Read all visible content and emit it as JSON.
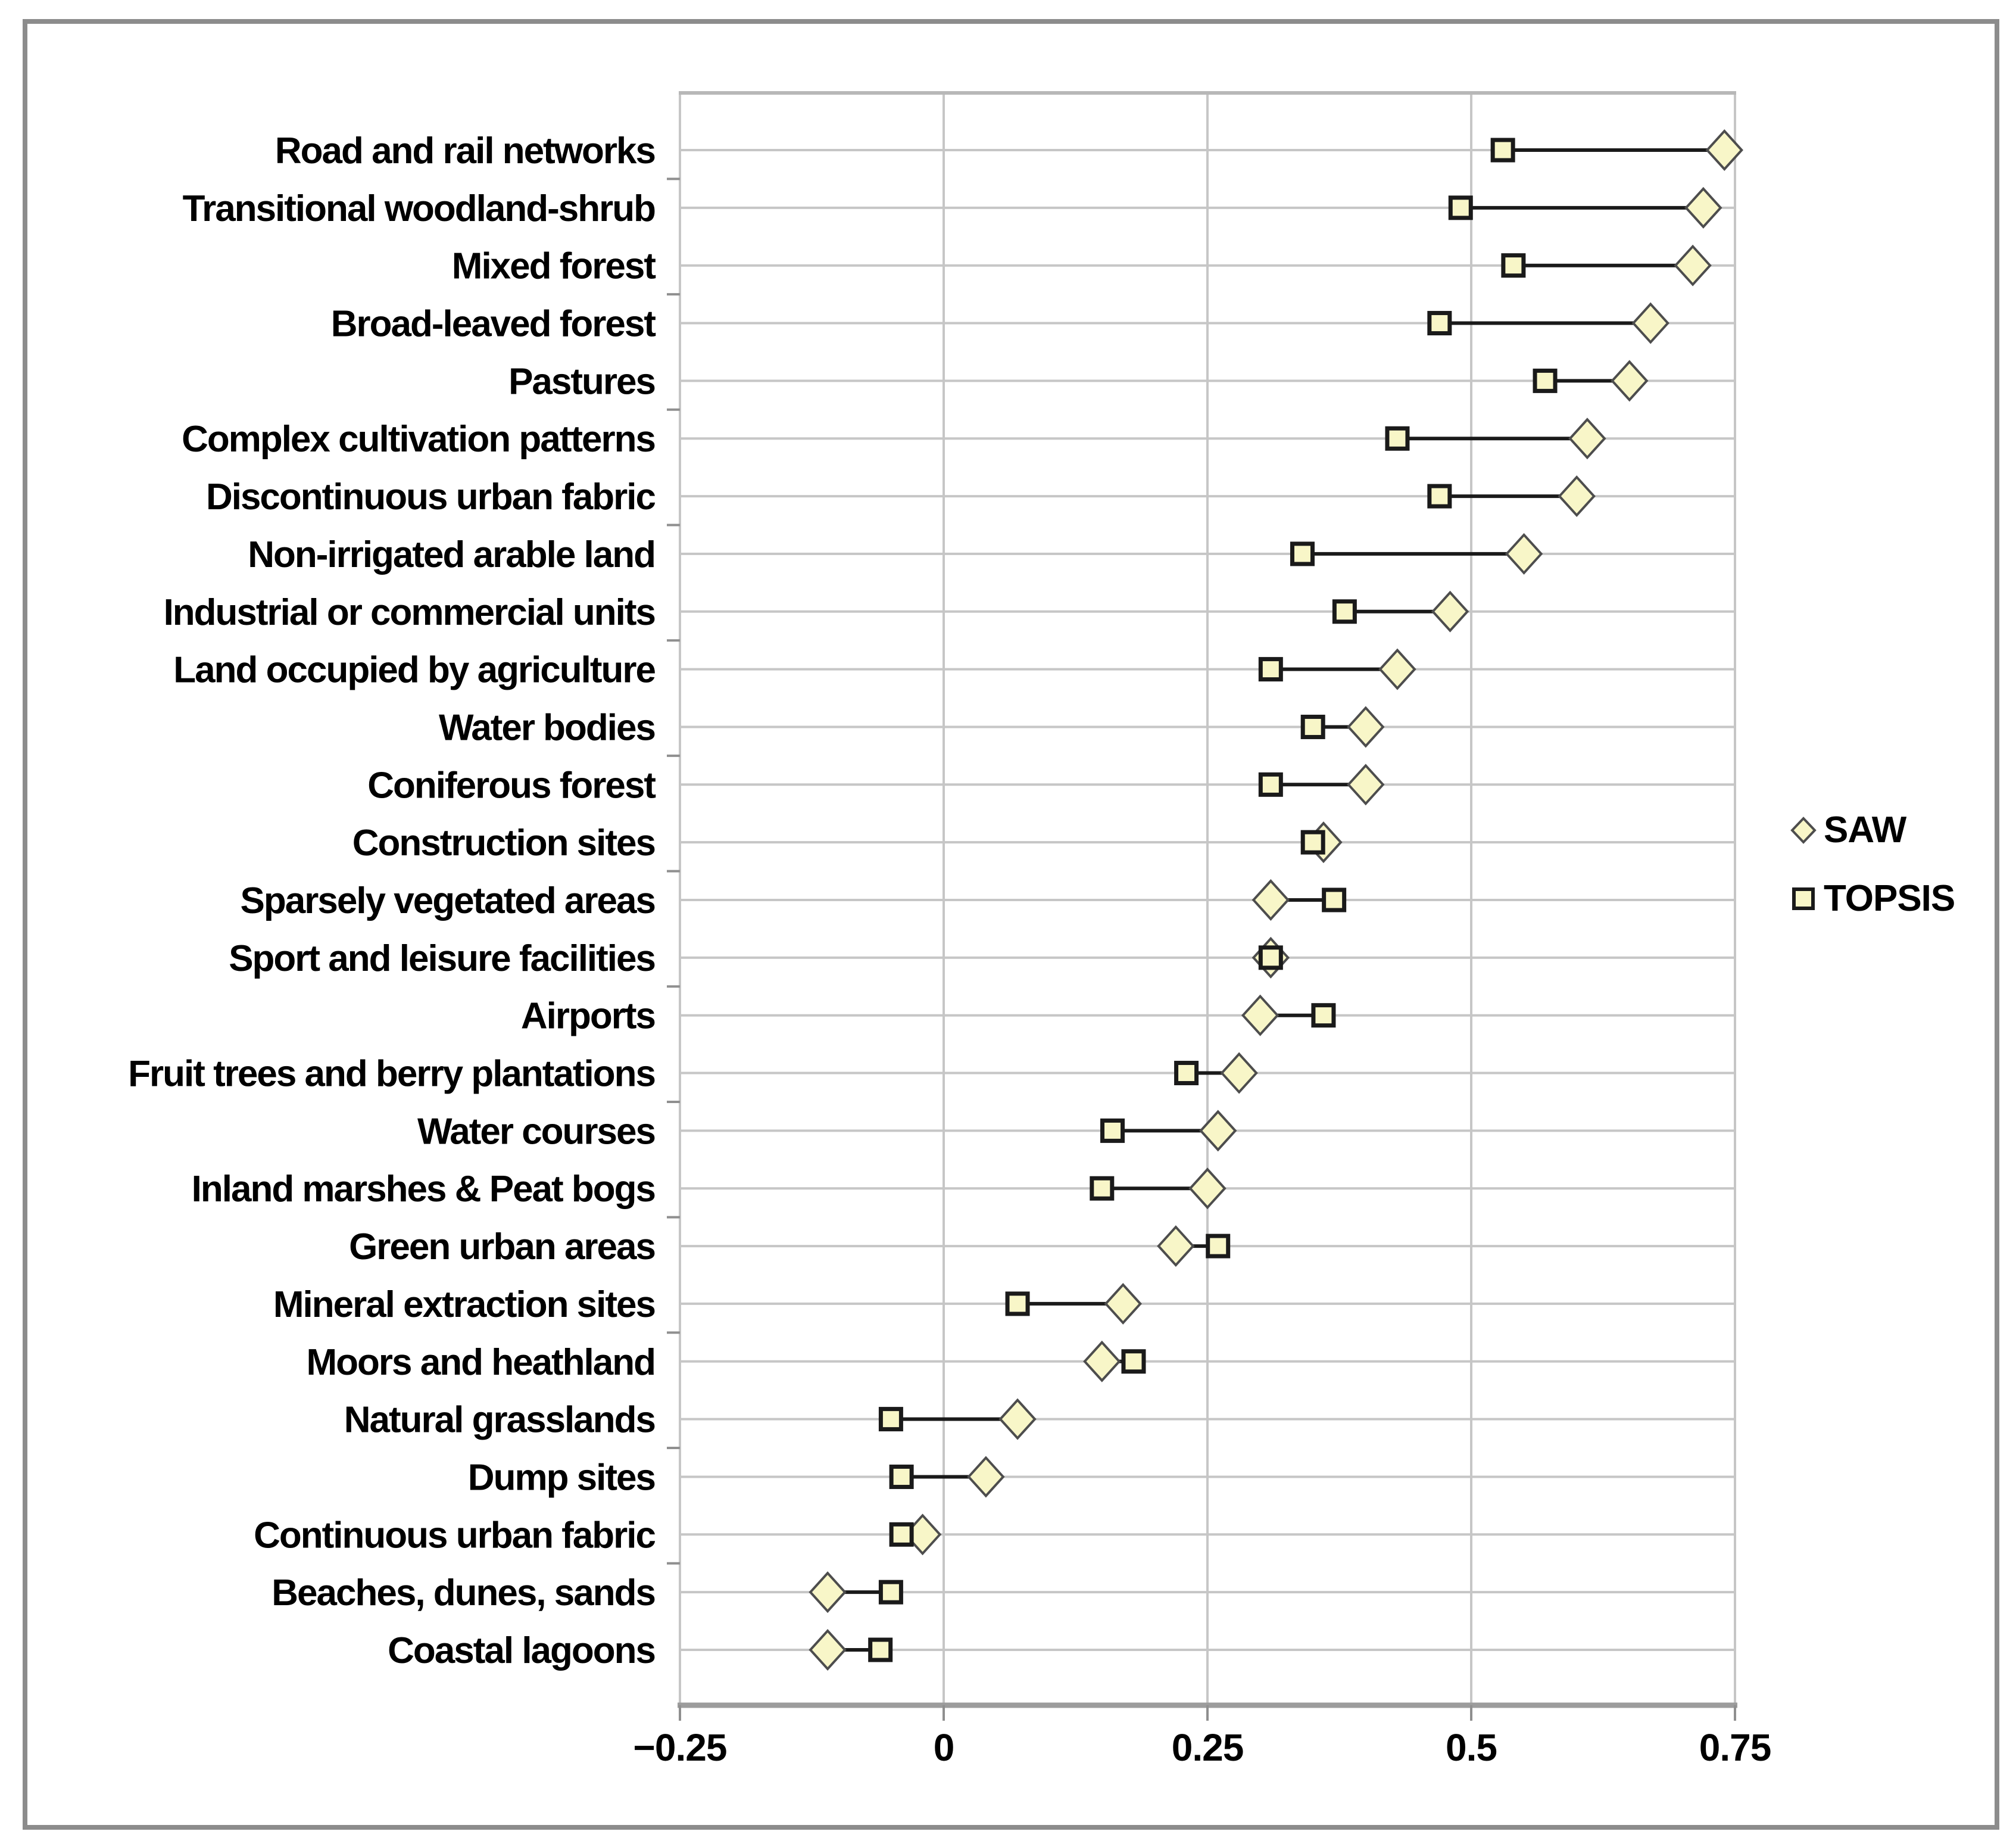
{
  "chart_data": {
    "type": "scatter",
    "variant": "dumbbell",
    "title": "",
    "xlabel": "",
    "ylabel": "",
    "xlim": [
      -0.25,
      0.75
    ],
    "x_ticks": [
      -0.25,
      0,
      0.25,
      0.5,
      0.75
    ],
    "x_tick_labels": [
      "−0.25",
      "0",
      "0.25",
      "0.5",
      "0.75"
    ],
    "grid": {
      "vertical_at_ticks": true,
      "horizontal_per_category": true
    },
    "legend_position": "right-middle",
    "categories": [
      "Road and rail networks",
      "Transitional woodland-shrub",
      "Mixed forest",
      "Broad-leaved forest",
      "Pastures",
      "Complex cultivation patterns",
      "Discontinuous urban fabric",
      "Non-irrigated arable land",
      "Industrial or commercial units",
      "Land occupied by agriculture",
      "Water bodies",
      "Coniferous forest",
      "Construction sites",
      "Sparsely vegetated areas",
      "Sport and leisure facilities",
      "Airports",
      "Fruit trees and berry plantations",
      "Water courses",
      "Inland marshes & Peat bogs",
      "Green urban areas",
      "Mineral extraction sites",
      "Moors and heathland",
      "Natural grasslands",
      "Dump sites",
      "Continuous urban fabric",
      "Beaches, dunes, sands",
      "Coastal lagoons"
    ],
    "series": [
      {
        "name": "SAW",
        "marker": "diamond",
        "values": [
          0.74,
          0.72,
          0.71,
          0.67,
          0.65,
          0.61,
          0.6,
          0.55,
          0.48,
          0.43,
          0.4,
          0.4,
          0.36,
          0.31,
          0.31,
          0.3,
          0.28,
          0.26,
          0.25,
          0.22,
          0.17,
          0.15,
          0.07,
          0.04,
          -0.02,
          -0.11,
          -0.11
        ]
      },
      {
        "name": "TOPSIS",
        "marker": "square",
        "values": [
          0.53,
          0.49,
          0.54,
          0.47,
          0.57,
          0.43,
          0.47,
          0.34,
          0.38,
          0.31,
          0.35,
          0.31,
          0.35,
          0.37,
          0.31,
          0.36,
          0.23,
          0.16,
          0.15,
          0.26,
          0.07,
          0.18,
          -0.05,
          -0.04,
          -0.04,
          -0.05,
          -0.06
        ]
      }
    ],
    "colors": {
      "marker_fill": "#F8F6C8",
      "diamond_stroke": "#4d4d4d",
      "square_stroke": "#1a1a1a",
      "connector": "#1a1a1a",
      "gridline": "#c6c6c6",
      "plot_top_border": "#b8b8b8",
      "axis_line": "#9c9c9c",
      "tick": "#8f8f8f",
      "frame_border": "#8c8c8c",
      "text": "#000000"
    }
  }
}
